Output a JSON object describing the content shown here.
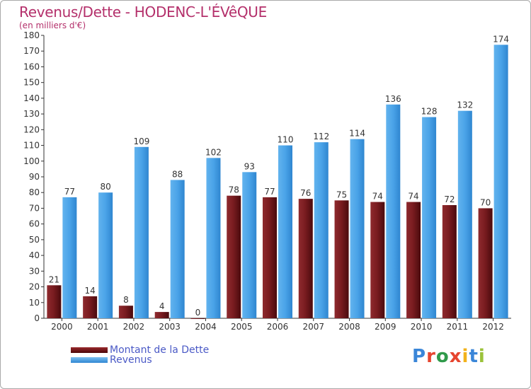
{
  "title": "Revenus/Dette - HODENC-L'ÉVêQUE",
  "subtitle": "(en milliers d'€)",
  "chart_data": {
    "type": "bar",
    "title": "Revenus/Dette - HODENC-L'ÉVêQUE",
    "ylabel": "(en milliers d'€)",
    "xlabel": "",
    "ylim": [
      0,
      180
    ],
    "ytick_step": 10,
    "grid": false,
    "legend_position": "bottom-left",
    "categories": [
      "2000",
      "2001",
      "2002",
      "2003",
      "2004",
      "2005",
      "2006",
      "2007",
      "2008",
      "2009",
      "2010",
      "2011",
      "2012"
    ],
    "series": [
      {
        "name": "Montant de la Dette",
        "color": "#7a1a1d",
        "values": [
          21,
          14,
          8,
          4,
          0,
          78,
          77,
          76,
          75,
          74,
          74,
          72,
          70
        ]
      },
      {
        "name": "Revenus",
        "color": "#4aa3e8",
        "values": [
          77,
          80,
          109,
          88,
          102,
          93,
          110,
          112,
          114,
          136,
          128,
          132,
          174
        ]
      }
    ]
  },
  "legend": {
    "items": [
      {
        "label": "Montant de la Dette",
        "color": "#6b0f12"
      },
      {
        "label": "Revenus",
        "color": "#3d9be3"
      }
    ]
  },
  "logo": {
    "letters": [
      {
        "ch": "P",
        "color": "#3a86d8"
      },
      {
        "ch": "r",
        "color": "#e6452f"
      },
      {
        "ch": "o",
        "color": "#2f9a4a"
      },
      {
        "ch": "x",
        "color": "#e6452f"
      },
      {
        "ch": "i",
        "color": "#f2b21b"
      },
      {
        "ch": "t",
        "color": "#3a86d8"
      },
      {
        "ch": "i",
        "color": "#9bc23a"
      }
    ]
  }
}
